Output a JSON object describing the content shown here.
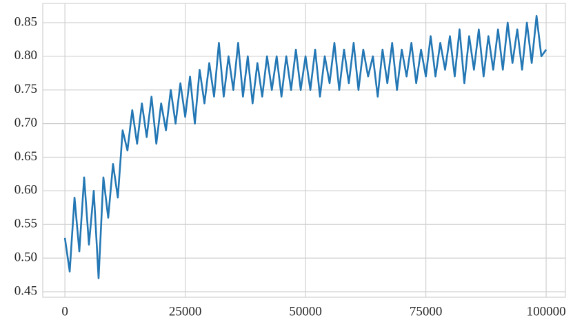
{
  "chart_data": {
    "type": "line",
    "x": [
      0,
      1000,
      2000,
      3000,
      4000,
      5000,
      6000,
      7000,
      8000,
      9000,
      10000,
      11000,
      12000,
      13000,
      14000,
      15000,
      16000,
      17000,
      18000,
      19000,
      20000,
      21000,
      22000,
      23000,
      24000,
      25000,
      26000,
      27000,
      28000,
      29000,
      30000,
      31000,
      32000,
      33000,
      34000,
      35000,
      36000,
      37000,
      38000,
      39000,
      40000,
      41000,
      42000,
      43000,
      44000,
      45000,
      46000,
      47000,
      48000,
      49000,
      50000,
      51000,
      52000,
      53000,
      54000,
      55000,
      56000,
      57000,
      58000,
      59000,
      60000,
      61000,
      62000,
      63000,
      64000,
      65000,
      66000,
      67000,
      68000,
      69000,
      70000,
      71000,
      72000,
      73000,
      74000,
      75000,
      76000,
      77000,
      78000,
      79000,
      80000,
      81000,
      82000,
      83000,
      84000,
      85000,
      86000,
      87000,
      88000,
      89000,
      90000,
      91000,
      92000,
      93000,
      94000,
      95000,
      96000,
      97000,
      98000,
      99000,
      100000
    ],
    "values": [
      0.53,
      0.48,
      0.59,
      0.51,
      0.62,
      0.52,
      0.6,
      0.47,
      0.62,
      0.56,
      0.64,
      0.59,
      0.69,
      0.66,
      0.72,
      0.67,
      0.73,
      0.68,
      0.74,
      0.67,
      0.73,
      0.69,
      0.75,
      0.7,
      0.76,
      0.71,
      0.77,
      0.7,
      0.78,
      0.73,
      0.79,
      0.74,
      0.82,
      0.74,
      0.8,
      0.75,
      0.82,
      0.74,
      0.8,
      0.73,
      0.79,
      0.74,
      0.8,
      0.75,
      0.8,
      0.74,
      0.8,
      0.75,
      0.81,
      0.75,
      0.8,
      0.75,
      0.81,
      0.74,
      0.8,
      0.76,
      0.82,
      0.75,
      0.81,
      0.76,
      0.82,
      0.75,
      0.81,
      0.77,
      0.8,
      0.74,
      0.81,
      0.76,
      0.82,
      0.75,
      0.81,
      0.77,
      0.82,
      0.76,
      0.81,
      0.77,
      0.83,
      0.77,
      0.82,
      0.78,
      0.83,
      0.77,
      0.84,
      0.76,
      0.83,
      0.78,
      0.84,
      0.77,
      0.83,
      0.78,
      0.84,
      0.78,
      0.85,
      0.79,
      0.84,
      0.78,
      0.85,
      0.79,
      0.86,
      0.8,
      0.81
    ],
    "color": "#2377b4",
    "xlim": [
      -4600,
      104000
    ],
    "ylim": [
      0.4418,
      0.8786
    ],
    "xticks": [
      0,
      25000,
      50000,
      75000,
      100000
    ],
    "yticks": [
      0.45,
      {
        "value": 0.5,
        "label": "0.50"
      },
      0.55,
      {
        "value": 0.6,
        "label": "0.60"
      },
      0.65,
      {
        "value": 0.7,
        "label": "0.70"
      },
      0.75,
      {
        "value": 0.8,
        "label": "0.80"
      },
      0.85
    ],
    "grid": true
  }
}
